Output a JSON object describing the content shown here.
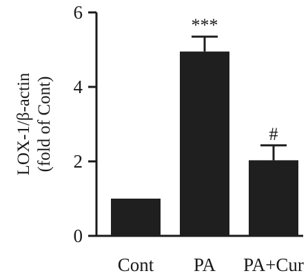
{
  "chart_data": {
    "type": "bar",
    "categories": [
      "Cont",
      "PA",
      "PA+Cur"
    ],
    "values": [
      1.0,
      4.95,
      2.03
    ],
    "errors": [
      0,
      0.4,
      0.4
    ],
    "significance": [
      "",
      "***",
      "#"
    ],
    "ylabel_line1": "LOX-1/β-actin",
    "ylabel_line2": "(fold of Cont)",
    "ylim": [
      0,
      6
    ],
    "yticks": [
      0,
      2,
      4,
      6
    ],
    "grid": false,
    "bar_color": "#1f1f1f"
  }
}
